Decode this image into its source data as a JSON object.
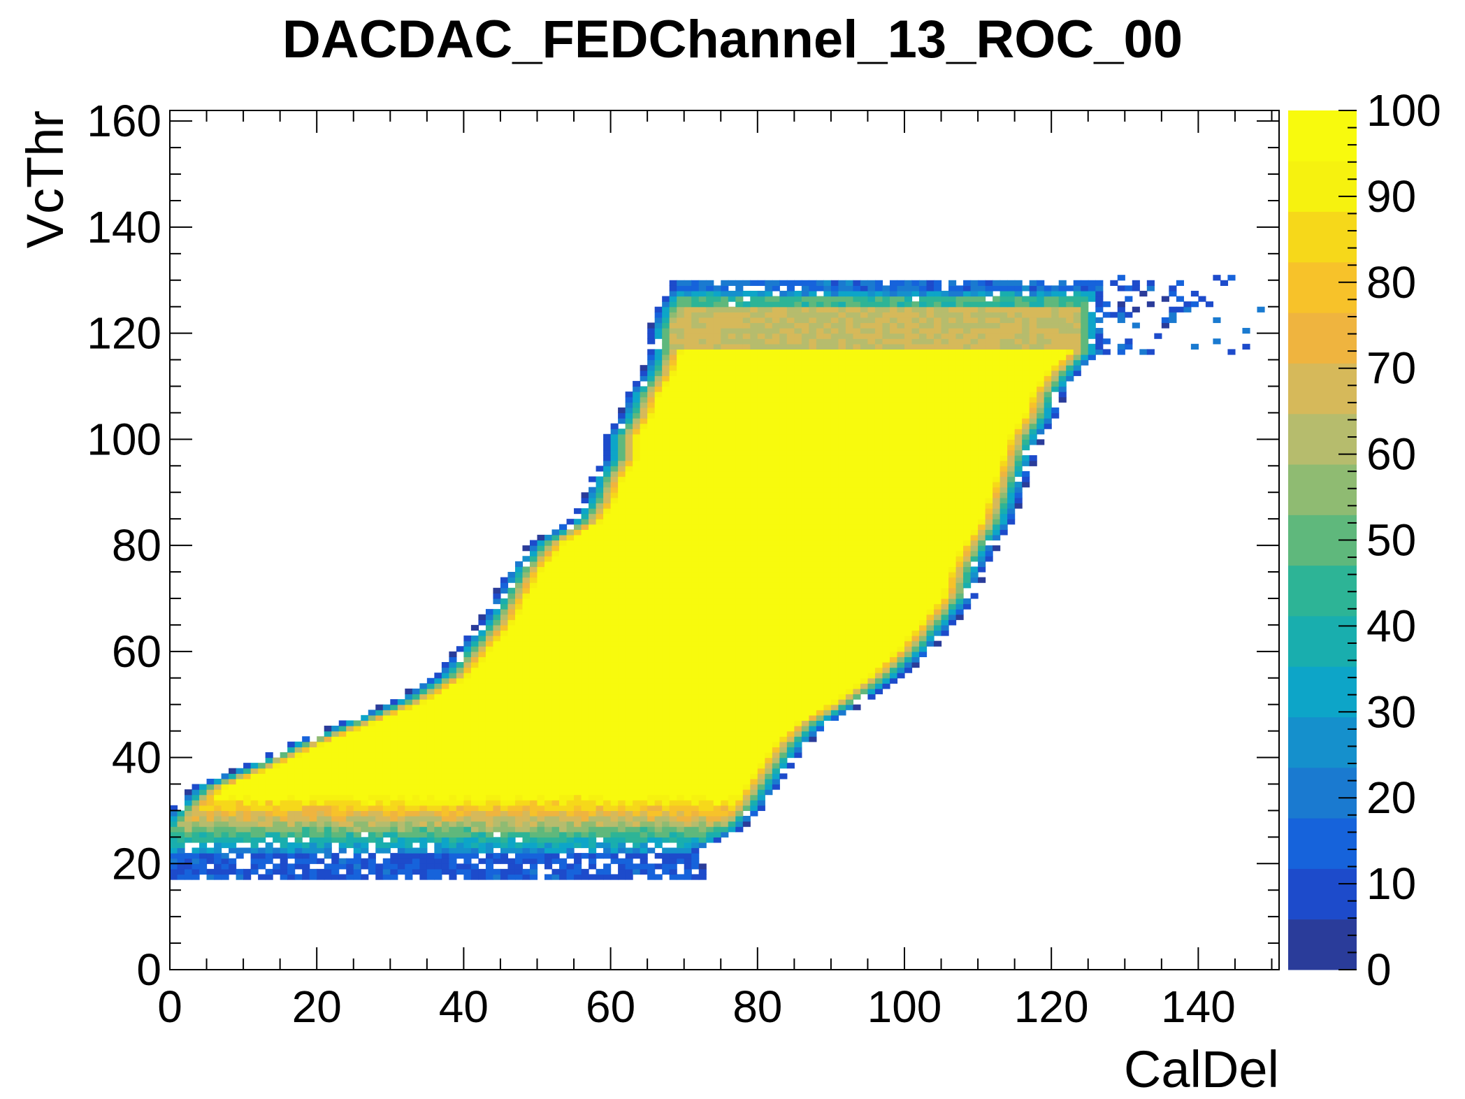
{
  "chart_data": {
    "type": "heatmap",
    "title": "DACDAC_FEDChannel_13_ROC_00",
    "xlabel": "CalDel",
    "ylabel": "VcThr",
    "xlim": [
      0,
      151
    ],
    "ylim": [
      0,
      162
    ],
    "x_ticks": [
      "0",
      "20",
      "40",
      "60",
      "80",
      "100",
      "120",
      "140"
    ],
    "y_ticks": [
      "0",
      "20",
      "40",
      "60",
      "80",
      "100",
      "120",
      "140",
      "160"
    ],
    "z_range": [
      0,
      100
    ],
    "z_ticks": [
      "0",
      "10",
      "20",
      "30",
      "40",
      "50",
      "60",
      "70",
      "80",
      "90",
      "100"
    ],
    "colormap": [
      "#2a3c9a",
      "#1d4bcb",
      "#1663db",
      "#1a7ad0",
      "#1590cc",
      "#0da5c8",
      "#19aeae",
      "#2db496",
      "#5fb87c",
      "#8fbb72",
      "#b6bc6d",
      "#d6b95a",
      "#efb43f",
      "#f7c22a",
      "#f6d81a",
      "#f6f20f",
      "#f8fa0d"
    ],
    "legend": "colorbar-right",
    "grid": false,
    "efficiency_region": {
      "description_of_values": "VcThr rows: [left CalDel edge, right CalDel edge] of the efficient band",
      "rows": [
        {
          "vcthr": 18,
          "left": 0,
          "right": 70
        },
        {
          "vcthr": 22,
          "left": 0,
          "right": 69
        },
        {
          "vcthr": 26,
          "left": 0,
          "right": 75
        },
        {
          "vcthr": 30,
          "left": 2,
          "right": 78
        },
        {
          "vcthr": 34,
          "left": 5,
          "right": 80
        },
        {
          "vcthr": 38,
          "left": 12,
          "right": 82
        },
        {
          "vcthr": 42,
          "left": 18,
          "right": 84
        },
        {
          "vcthr": 46,
          "left": 25,
          "right": 87
        },
        {
          "vcthr": 50,
          "left": 32,
          "right": 92
        },
        {
          "vcthr": 55,
          "left": 38,
          "right": 97
        },
        {
          "vcthr": 60,
          "left": 41,
          "right": 101
        },
        {
          "vcthr": 65,
          "left": 44,
          "right": 104
        },
        {
          "vcthr": 70,
          "left": 46,
          "right": 107
        },
        {
          "vcthr": 75,
          "left": 48,
          "right": 108
        },
        {
          "vcthr": 80,
          "left": 51,
          "right": 110
        },
        {
          "vcthr": 84,
          "left": 56,
          "right": 112
        },
        {
          "vcthr": 88,
          "left": 58,
          "right": 113
        },
        {
          "vcthr": 92,
          "left": 59,
          "right": 114
        },
        {
          "vcthr": 96,
          "left": 61,
          "right": 115
        },
        {
          "vcthr": 100,
          "left": 61,
          "right": 116
        },
        {
          "vcthr": 104,
          "left": 63,
          "right": 118
        },
        {
          "vcthr": 108,
          "left": 64,
          "right": 119
        },
        {
          "vcthr": 112,
          "left": 66,
          "right": 121
        },
        {
          "vcthr": 116,
          "left": 67,
          "right": 124
        },
        {
          "vcthr": 120,
          "left": 67,
          "right": 124
        },
        {
          "vcthr": 124,
          "left": 68,
          "right": 124
        },
        {
          "vcthr": 128,
          "left": 70,
          "right": 124
        }
      ],
      "plateau_rows": {
        "vcthr_min": 117,
        "vcthr_max": 124,
        "value": 65
      },
      "top_edge_vcthr": 129,
      "lower_band_vcthr": [
        22,
        34
      ],
      "right_tail": {
        "caldel_from": 124,
        "caldel_to": 148,
        "vcthr_from": 116,
        "vcthr_to": 130
      }
    }
  }
}
